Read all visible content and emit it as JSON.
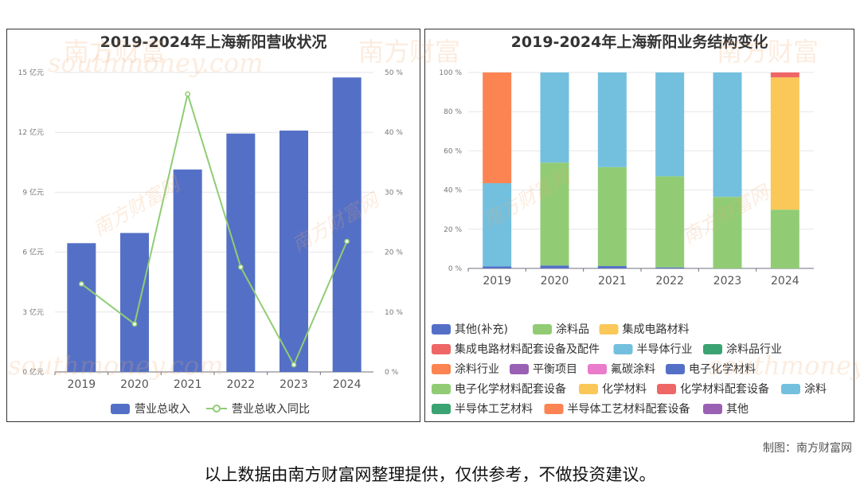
{
  "chart_data": [
    {
      "type": "bar+line",
      "title": "2019-2024年上海新阳营收状况",
      "categories": [
        "2019",
        "2020",
        "2021",
        "2022",
        "2023",
        "2024"
      ],
      "y_left": {
        "ticks": [
          "0 亿元",
          "3 亿元",
          "6 亿元",
          "9 亿元",
          "12 亿元",
          "15 亿元"
        ],
        "range": [
          0,
          15
        ]
      },
      "y_right": {
        "ticks": [
          "0 %",
          "10 %",
          "20 %",
          "30 %",
          "40 %",
          "50 %"
        ],
        "range": [
          0,
          50
        ]
      },
      "series": [
        {
          "name": "营业总收入",
          "kind": "bar",
          "axis": "left",
          "color": "#5470c6",
          "values": [
            6.45,
            6.96,
            10.14,
            11.94,
            12.09,
            14.75
          ]
        },
        {
          "name": "营业总收入同比",
          "kind": "line",
          "axis": "right",
          "color": "#91cc75",
          "values": [
            14.7,
            8.0,
            46.4,
            17.5,
            1.2,
            21.8
          ]
        }
      ],
      "legend_position": "bottom",
      "grid": true
    },
    {
      "type": "stacked-bar",
      "title": "2019-2024年上海新阳业务结构变化",
      "categories": [
        "2019",
        "2020",
        "2021",
        "2022",
        "2023",
        "2024"
      ],
      "y_axis": {
        "ticks": [
          "0 %",
          "20 %",
          "40 %",
          "60 %",
          "80 %",
          "100 %"
        ],
        "range": [
          0,
          100
        ]
      },
      "series": [
        {
          "name": "其他(补充)",
          "color": "#5470c6",
          "values": [
            1.0,
            1.5,
            1.2,
            0.5,
            0,
            0
          ]
        },
        {
          "name": "涂料品",
          "color": "#91cc75",
          "values": [
            0,
            52.5,
            50.5,
            46.5,
            36.5,
            30.0
          ]
        },
        {
          "name": "集成电路材料",
          "color": "#fac858",
          "values": [
            0,
            0,
            0,
            0,
            0,
            67.5
          ]
        },
        {
          "name": "集成电路材料配套设备及配件",
          "color": "#ee6666",
          "values": [
            0,
            0,
            0,
            0,
            0,
            2.5
          ]
        },
        {
          "name": "半导体行业",
          "color": "#73c0de",
          "values": [
            42.5,
            46.0,
            48.3,
            53.0,
            63.5,
            0
          ]
        },
        {
          "name": "涂料品行业",
          "color": "#3ba272",
          "values": [
            0,
            0,
            0,
            0,
            0,
            0
          ]
        },
        {
          "name": "涂料行业",
          "color": "#fc8452",
          "values": [
            56.5,
            0,
            0,
            0,
            0,
            0
          ]
        },
        {
          "name": "平衡项目",
          "color": "#9a60b4",
          "values": [
            0,
            0,
            0,
            0,
            0,
            0
          ]
        },
        {
          "name": "氟碳涂料",
          "color": "#ea7ccc",
          "values": [
            0,
            0,
            0,
            0,
            0,
            0
          ]
        },
        {
          "name": "电子化学材料",
          "color": "#5470c6",
          "values": [
            0,
            0,
            0,
            0,
            0,
            0
          ]
        },
        {
          "name": "电子化学材料配套设备",
          "color": "#91cc75",
          "values": [
            0,
            0,
            0,
            0,
            0,
            0
          ]
        },
        {
          "name": "化学材料",
          "color": "#fac858",
          "values": [
            0,
            0,
            0,
            0,
            0,
            0
          ]
        },
        {
          "name": "化学材料配套设备",
          "color": "#ee6666",
          "values": [
            0,
            0,
            0,
            0,
            0,
            0
          ]
        },
        {
          "name": "涂料",
          "color": "#73c0de",
          "values": [
            0,
            0,
            0,
            0,
            0,
            0
          ]
        },
        {
          "name": "半导体工艺材料",
          "color": "#3ba272",
          "values": [
            0,
            0,
            0,
            0,
            0,
            0
          ]
        },
        {
          "name": "半导体工艺材料配套设备",
          "color": "#fc8452",
          "values": [
            0,
            0,
            0,
            0,
            0,
            0
          ]
        },
        {
          "name": "其他",
          "color": "#9a60b4",
          "values": [
            0,
            0,
            0,
            0,
            0,
            0
          ]
        }
      ],
      "legend_position": "bottom",
      "grid": true
    }
  ],
  "watermarks": {
    "brand_cn": "南方财富",
    "brand_cn_small": "南方财富网",
    "brand_en": "southmoney.com"
  },
  "footer": {
    "credit": "制图：南方财富网",
    "disclaimer": "以上数据由南方财富网整理提供，仅供参考，不做投资建议。"
  }
}
